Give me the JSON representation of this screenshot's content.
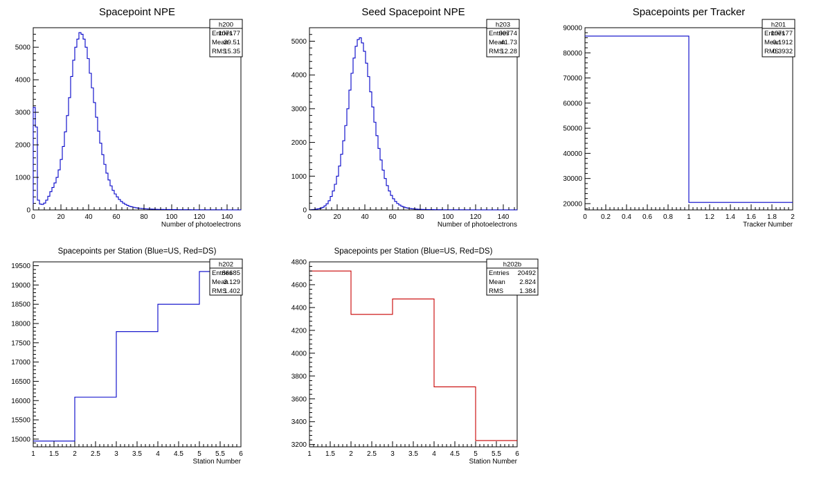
{
  "chart_data": [
    {
      "id": "h200",
      "type": "histogram",
      "title": "Spacepoint NPE",
      "xlabel": "Number of photoelectrons",
      "ylabel": "",
      "xlim": [
        0,
        150
      ],
      "ylim": [
        0,
        5600
      ],
      "x_ticks": [
        "0",
        "20",
        "40",
        "60",
        "80",
        "100",
        "120",
        "140"
      ],
      "y_ticks": [
        "0",
        "1000",
        "2000",
        "3000",
        "4000",
        "5000"
      ],
      "bin_width": 1.5,
      "color": "#0000c8",
      "stats": {
        "name": "h200",
        "rows": [
          [
            "Entries",
            "107177"
          ],
          [
            "Mean",
            "39.51"
          ],
          [
            "RMS",
            "15.35"
          ]
        ]
      },
      "values": [
        3150,
        2550,
        300,
        180,
        170,
        210,
        300,
        420,
        560,
        690,
        830,
        1000,
        1230,
        1550,
        1950,
        2400,
        2900,
        3450,
        4100,
        4600,
        5000,
        5250,
        5450,
        5400,
        5250,
        5000,
        4650,
        4200,
        3750,
        3300,
        2850,
        2420,
        2050,
        1700,
        1400,
        1130,
        920,
        740,
        600,
        490,
        400,
        320,
        260,
        210,
        170,
        140,
        110,
        95,
        80,
        65,
        55,
        48,
        42,
        36,
        32,
        28,
        25,
        22,
        20,
        18,
        16,
        15,
        14,
        13,
        12,
        11,
        10,
        9,
        9,
        8,
        8,
        7,
        7,
        6,
        6,
        6,
        5,
        5,
        5,
        5,
        4,
        4,
        4,
        4,
        3,
        3,
        3,
        3,
        3,
        3,
        2,
        2,
        2,
        2,
        2,
        2,
        2,
        2,
        2,
        2
      ]
    },
    {
      "id": "h203",
      "type": "histogram",
      "title": "Seed Spacepoint NPE",
      "xlabel": "Number of photoelectrons",
      "ylabel": "",
      "xlim": [
        0,
        150
      ],
      "ylim": [
        0,
        5400
      ],
      "x_ticks": [
        "0",
        "20",
        "40",
        "60",
        "80",
        "100",
        "120",
        "140"
      ],
      "y_ticks": [
        "0",
        "1000",
        "2000",
        "3000",
        "4000",
        "5000"
      ],
      "bin_width": 1.5,
      "color": "#0000c8",
      "stats": {
        "name": "h203",
        "rows": [
          [
            "Entries",
            "90774"
          ],
          [
            "Mean",
            "41.73"
          ],
          [
            "RMS",
            "12.28"
          ]
        ]
      },
      "values": [
        5,
        10,
        15,
        25,
        35,
        50,
        75,
        120,
        180,
        270,
        400,
        560,
        760,
        1000,
        1300,
        1650,
        2050,
        2500,
        3000,
        3550,
        4050,
        4500,
        4850,
        5050,
        5100,
        4950,
        4700,
        4350,
        3950,
        3500,
        3050,
        2600,
        2200,
        1820,
        1480,
        1180,
        930,
        720,
        560,
        430,
        330,
        250,
        190,
        145,
        110,
        85,
        65,
        52,
        42,
        35,
        29,
        24,
        20,
        17,
        15,
        13,
        11,
        10,
        9,
        8,
        7,
        7,
        6,
        6,
        5,
        5,
        5,
        4,
        4,
        4,
        4,
        3,
        3,
        3,
        3,
        3,
        3,
        2,
        2,
        2,
        2,
        2,
        2,
        2,
        2,
        2,
        2,
        2,
        2,
        2,
        2,
        2,
        1,
        1,
        1,
        1,
        1,
        1,
        1,
        1
      ]
    },
    {
      "id": "h201",
      "type": "histogram",
      "title": "Spacepoints per Tracker",
      "xlabel": "Tracker Number",
      "ylabel": "",
      "xlim": [
        0,
        2
      ],
      "ylim": [
        17500,
        90000
      ],
      "x_ticks": [
        "0",
        "0.2",
        "0.4",
        "0.6",
        "0.8",
        "1",
        "1.2",
        "1.4",
        "1.6",
        "1.8",
        "2"
      ],
      "y_ticks": [
        "20000",
        "30000",
        "40000",
        "50000",
        "60000",
        "70000",
        "80000",
        "90000"
      ],
      "bin_edges": [
        0,
        1,
        2
      ],
      "color": "#0000c8",
      "stats": {
        "name": "h201",
        "rows": [
          [
            "Entries",
            "107177"
          ],
          [
            "Mean",
            "0.1912"
          ],
          [
            "RMS",
            "0.3932"
          ]
        ]
      },
      "values": [
        86685,
        20492
      ]
    },
    {
      "id": "h202",
      "type": "histogram",
      "title": "Spacepoints per Station (Blue=US, Red=DS)",
      "xlabel": "Station Number",
      "ylabel": "",
      "xlim": [
        1,
        6
      ],
      "ylim": [
        14800,
        19600
      ],
      "x_ticks": [
        "1",
        "1.5",
        "2",
        "2.5",
        "3",
        "3.5",
        "4",
        "4.5",
        "5",
        "5.5",
        "6"
      ],
      "y_ticks": [
        "15000",
        "15500",
        "16000",
        "16500",
        "17000",
        "17500",
        "18000",
        "18500",
        "19000",
        "19500"
      ],
      "bin_edges": [
        1,
        2,
        3,
        4,
        5,
        6
      ],
      "color": "#0000c8",
      "stats": {
        "name": "h202",
        "rows": [
          [
            "Entries",
            "86685"
          ],
          [
            "Mean",
            "3.129"
          ],
          [
            "RMS",
            "1.402"
          ]
        ]
      },
      "values": [
        14950,
        16090,
        17790,
        18500,
        19350
      ]
    },
    {
      "id": "h202b",
      "type": "histogram",
      "title": "Spacepoints per Station (Blue=US, Red=DS)",
      "xlabel": "Station Number",
      "ylabel": "",
      "xlim": [
        1,
        6
      ],
      "ylim": [
        3180,
        4800
      ],
      "x_ticks": [
        "1",
        "1.5",
        "2",
        "2.5",
        "3",
        "3.5",
        "4",
        "4.5",
        "5",
        "5.5",
        "6"
      ],
      "y_ticks": [
        "3200",
        "3400",
        "3600",
        "3800",
        "4000",
        "4200",
        "4400",
        "4600",
        "4800"
      ],
      "bin_edges": [
        1,
        2,
        3,
        4,
        5,
        6
      ],
      "color": "#c80000",
      "stats": {
        "name": "h202b",
        "rows": [
          [
            "Entries",
            "20492"
          ],
          [
            "Mean",
            "2.824"
          ],
          [
            "RMS",
            "1.384"
          ]
        ]
      },
      "values": [
        4720,
        4340,
        4475,
        3705,
        3235
      ]
    }
  ]
}
